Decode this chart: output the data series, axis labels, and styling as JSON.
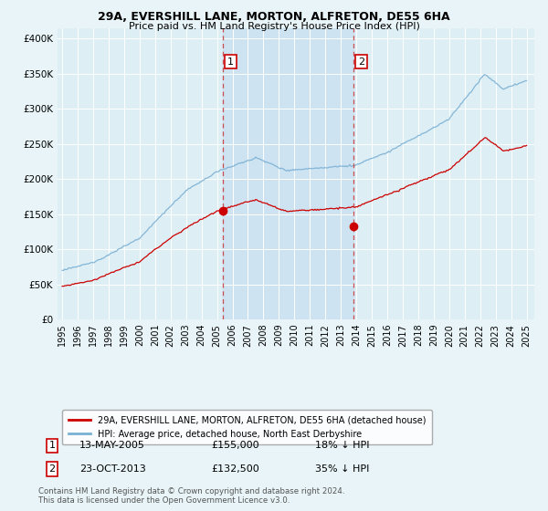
{
  "title1": "29A, EVERSHILL LANE, MORTON, ALFRETON, DE55 6HA",
  "title2": "Price paid vs. HM Land Registry's House Price Index (HPI)",
  "yticks": [
    0,
    50000,
    100000,
    150000,
    200000,
    250000,
    300000,
    350000,
    400000
  ],
  "ytick_labels": [
    "£0",
    "£50K",
    "£100K",
    "£150K",
    "£200K",
    "£250K",
    "£300K",
    "£350K",
    "£400K"
  ],
  "xlim": [
    1994.7,
    2025.5
  ],
  "ylim": [
    0,
    415000
  ],
  "background_color": "#e8f4f8",
  "plot_bg": "#ddeef5",
  "grid_color": "#cccccc",
  "sale1_x": 2005.36,
  "sale1_y": 155000,
  "sale2_x": 2013.81,
  "sale2_y": 132500,
  "red_line_color": "#cc0000",
  "blue_line_color": "#7ab0d4",
  "vline_color": "#cc3333",
  "shade_color": "#c8dff0",
  "legend_label_red": "29A, EVERSHILL LANE, MORTON, ALFRETON, DE55 6HA (detached house)",
  "legend_label_blue": "HPI: Average price, detached house, North East Derbyshire",
  "sale1_date": "13-MAY-2005",
  "sale1_price": "£155,000",
  "sale1_hpi": "18% ↓ HPI",
  "sale2_date": "23-OCT-2013",
  "sale2_price": "£132,500",
  "sale2_hpi": "35% ↓ HPI",
  "footnote": "Contains HM Land Registry data © Crown copyright and database right 2024.\nThis data is licensed under the Open Government Licence v3.0."
}
